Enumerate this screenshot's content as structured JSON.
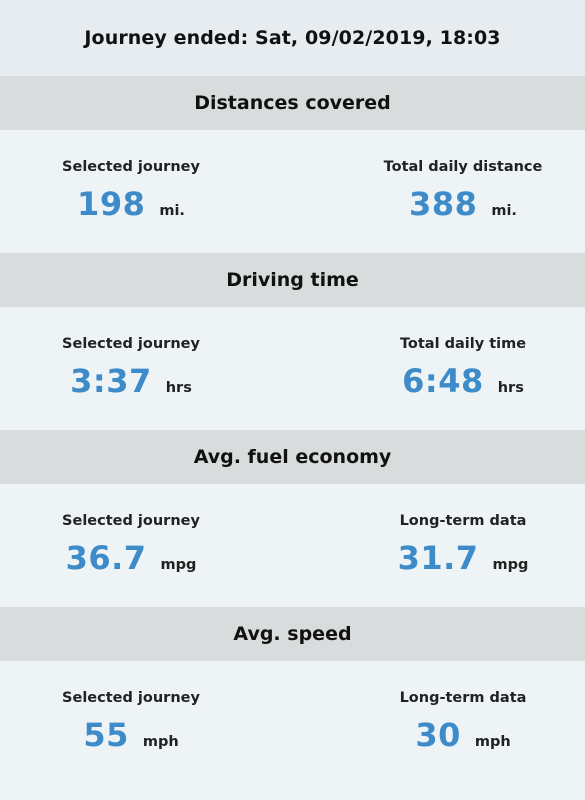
{
  "header": {
    "title": "Journey ended: Sat, 09/02/2019, 18:03"
  },
  "sections": [
    {
      "title": "Distances covered",
      "left": {
        "label": "Selected journey",
        "value": "198",
        "unit": "mi."
      },
      "right": {
        "label": "Total daily distance",
        "value": "388",
        "unit": "mi."
      }
    },
    {
      "title": "Driving time",
      "left": {
        "label": "Selected journey",
        "value": "3:37",
        "unit": "hrs"
      },
      "right": {
        "label": "Total daily time",
        "value": "6:48",
        "unit": "hrs"
      }
    },
    {
      "title": "Avg. fuel economy",
      "left": {
        "label": "Selected journey",
        "value": "36.7",
        "unit": "mpg"
      },
      "right": {
        "label": "Long-term data",
        "value": "31.7",
        "unit": "mpg"
      }
    },
    {
      "title": "Avg. speed",
      "left": {
        "label": "Selected journey",
        "value": "55",
        "unit": "mph"
      },
      "right": {
        "label": "Long-term data",
        "value": "30",
        "unit": "mph"
      }
    }
  ],
  "colors": {
    "value_accent": "#3d8bc8",
    "section_header_bg": "#d9dcdd",
    "page_bg": "#eef3f5"
  }
}
